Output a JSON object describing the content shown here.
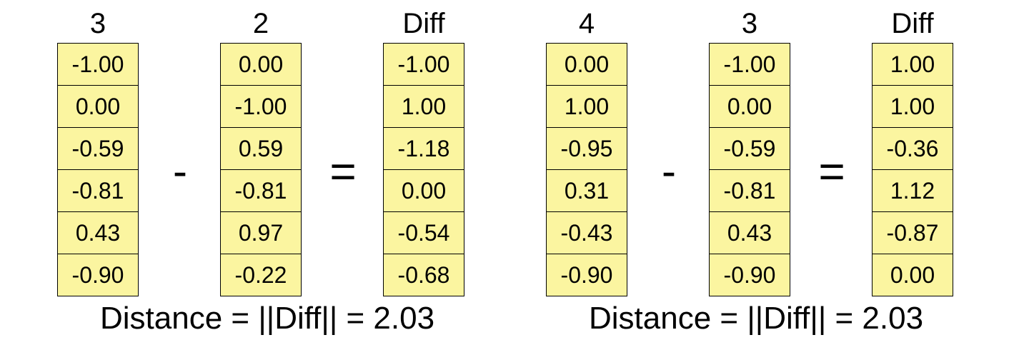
{
  "groups": [
    {
      "a": {
        "header": "3",
        "values": [
          "-1.00",
          "0.00",
          "-0.59",
          "-0.81",
          "0.43",
          "-0.90"
        ]
      },
      "op_minus": "-",
      "b": {
        "header": "2",
        "values": [
          "0.00",
          "-1.00",
          "0.59",
          "-0.81",
          "0.97",
          "-0.22"
        ]
      },
      "op_equals": "=",
      "diff": {
        "header": "Diff",
        "values": [
          "-1.00",
          "1.00",
          "-1.18",
          "0.00",
          "-0.54",
          "-0.68"
        ]
      },
      "distance": "Distance = ||Diff|| = 2.03"
    },
    {
      "a": {
        "header": "4",
        "values": [
          "0.00",
          "1.00",
          "-0.95",
          "0.31",
          "-0.43",
          "-0.90"
        ]
      },
      "op_minus": "-",
      "b": {
        "header": "3",
        "values": [
          "-1.00",
          "0.00",
          "-0.59",
          "-0.81",
          "0.43",
          "-0.90"
        ]
      },
      "op_equals": "=",
      "diff": {
        "header": "Diff",
        "values": [
          "1.00",
          "1.00",
          "-0.36",
          "1.12",
          "-0.87",
          "0.00"
        ]
      },
      "distance": "Distance = ||Diff|| = 2.03"
    }
  ],
  "colors": {
    "cell_fill": "#fbf5a0",
    "border": "#000000",
    "text": "#000000"
  }
}
